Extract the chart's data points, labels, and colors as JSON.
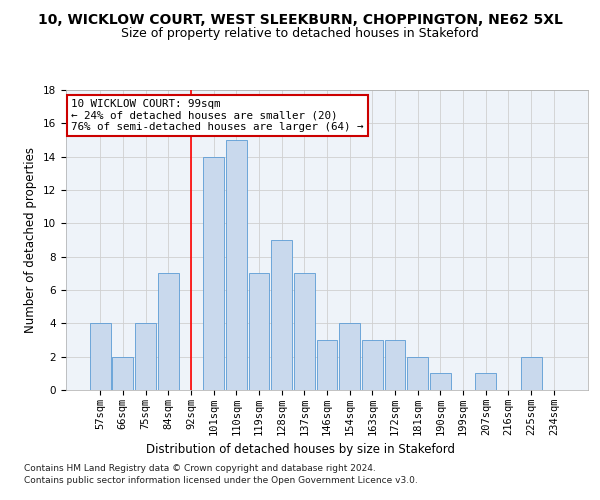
{
  "title": "10, WICKLOW COURT, WEST SLEEKBURN, CHOPPINGTON, NE62 5XL",
  "subtitle": "Size of property relative to detached houses in Stakeford",
  "xlabel": "Distribution of detached houses by size in Stakeford",
  "ylabel": "Number of detached properties",
  "footnote1": "Contains HM Land Registry data © Crown copyright and database right 2024.",
  "footnote2": "Contains public sector information licensed under the Open Government Licence v3.0.",
  "annotation_line1": "10 WICKLOW COURT: 99sqm",
  "annotation_line2": "← 24% of detached houses are smaller (20)",
  "annotation_line3": "76% of semi-detached houses are larger (64) →",
  "bar_labels": [
    "57sqm",
    "66sqm",
    "75sqm",
    "84sqm",
    "92sqm",
    "101sqm",
    "110sqm",
    "119sqm",
    "128sqm",
    "137sqm",
    "146sqm",
    "154sqm",
    "163sqm",
    "172sqm",
    "181sqm",
    "190sqm",
    "199sqm",
    "207sqm",
    "216sqm",
    "225sqm",
    "234sqm"
  ],
  "bar_values": [
    4,
    2,
    4,
    7,
    0,
    14,
    15,
    7,
    9,
    7,
    3,
    4,
    3,
    3,
    2,
    1,
    0,
    1,
    0,
    2,
    0
  ],
  "bar_color": "#c9d9ed",
  "bar_edge_color": "#5b9bd5",
  "red_line_index": 4,
  "ylim": [
    0,
    18
  ],
  "yticks": [
    0,
    2,
    4,
    6,
    8,
    10,
    12,
    14,
    16,
    18
  ],
  "grid_color": "#d0d0d0",
  "annotation_box_color": "#ffffff",
  "annotation_box_edge": "#cc0000",
  "title_fontsize": 10,
  "subtitle_fontsize": 9,
  "axis_label_fontsize": 8.5,
  "tick_fontsize": 7.5,
  "footnote_fontsize": 6.5
}
